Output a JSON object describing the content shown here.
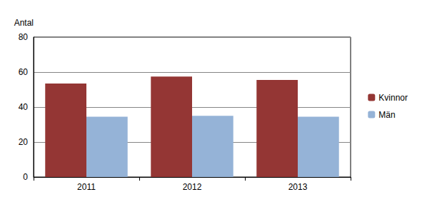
{
  "chart_data": {
    "type": "bar",
    "y_label": "Antal",
    "categories": [
      "2011",
      "2012",
      "2013"
    ],
    "series": [
      {
        "name": "Kvinnor",
        "color": "#943634",
        "values": [
          53.5,
          57.5,
          55.5
        ]
      },
      {
        "name": "Män",
        "color": "#95b3d7",
        "values": [
          34.5,
          35,
          34.5
        ]
      }
    ],
    "ylim": [
      0,
      80
    ],
    "yticks": [
      0,
      20,
      40,
      60,
      80
    ],
    "grid": true,
    "legend": "right"
  }
}
